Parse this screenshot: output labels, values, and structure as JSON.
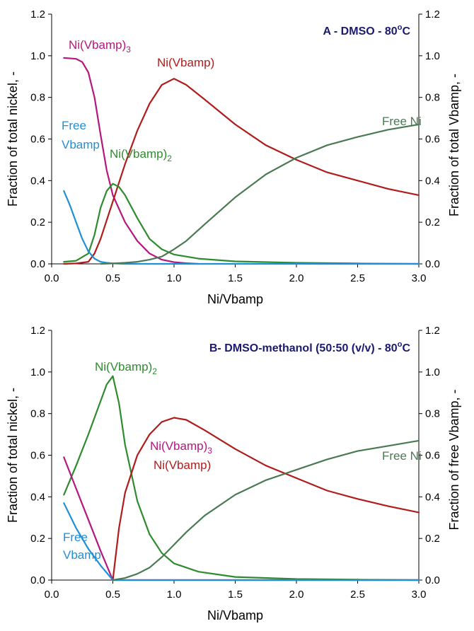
{
  "chart_data": [
    {
      "type": "line",
      "title": "A - DMSO - 80",
      "title_sup": "o",
      "title_unit": "C",
      "xlabel": "Ni/Vbamp",
      "ylabel": "Fraction of total nickel, -",
      "y2label": "Fraction of total Vbamp, -",
      "xlim": [
        0,
        3
      ],
      "ylim": [
        0,
        1.2
      ],
      "xticks": [
        "0.0",
        "0.5",
        "1.0",
        "1.5",
        "2.0",
        "2.5",
        "3.0"
      ],
      "yticks": [
        "0.0",
        "0.2",
        "0.4",
        "0.6",
        "0.8",
        "1.0",
        "1.2"
      ],
      "series": [
        {
          "name": "Ni(Vbamp)3",
          "label_main": "Ni(Vbamp)",
          "label_sub": "3",
          "color": "#b5167f",
          "x": [
            0.1,
            0.2,
            0.25,
            0.3,
            0.35,
            0.4,
            0.45,
            0.5,
            0.6,
            0.7,
            0.8,
            0.9,
            1.0,
            1.1,
            1.2
          ],
          "y": [
            0.99,
            0.985,
            0.97,
            0.92,
            0.8,
            0.62,
            0.45,
            0.33,
            0.2,
            0.11,
            0.05,
            0.02,
            0.008,
            0.003,
            0.0
          ]
        },
        {
          "name": "Ni(Vbamp)",
          "label_main": "Ni(Vbamp)",
          "label_sub": "",
          "color": "#b01c1c",
          "x": [
            0.1,
            0.2,
            0.3,
            0.35,
            0.4,
            0.5,
            0.6,
            0.7,
            0.8,
            0.9,
            1.0,
            1.1,
            1.25,
            1.5,
            1.75,
            2.0,
            2.25,
            2.5,
            2.75,
            3.0
          ],
          "y": [
            0.0,
            0.002,
            0.01,
            0.05,
            0.12,
            0.3,
            0.48,
            0.64,
            0.77,
            0.86,
            0.89,
            0.86,
            0.79,
            0.67,
            0.57,
            0.5,
            0.44,
            0.4,
            0.36,
            0.33
          ]
        },
        {
          "name": "Ni(Vbamp)2",
          "label_main": "Ni(Vbamp)",
          "label_sub": "2",
          "color": "#2e8b2e",
          "x": [
            0.1,
            0.2,
            0.3,
            0.35,
            0.4,
            0.45,
            0.5,
            0.55,
            0.6,
            0.7,
            0.8,
            0.9,
            1.0,
            1.2,
            1.5,
            2.0,
            2.5,
            3.0
          ],
          "y": [
            0.01,
            0.015,
            0.05,
            0.14,
            0.27,
            0.35,
            0.385,
            0.37,
            0.33,
            0.22,
            0.12,
            0.07,
            0.045,
            0.025,
            0.012,
            0.005,
            0.002,
            0.0
          ]
        },
        {
          "name": "Free Vbamp",
          "label_main": "Free",
          "label_line2": "Vbamp",
          "color": "#1f8fd6",
          "x": [
            0.1,
            0.15,
            0.2,
            0.25,
            0.3,
            0.35,
            0.4,
            0.45,
            0.5,
            0.6,
            0.8,
            1.0,
            1.5,
            2.0,
            2.5,
            3.0
          ],
          "y": [
            0.35,
            0.28,
            0.2,
            0.12,
            0.06,
            0.025,
            0.01,
            0.005,
            0.002,
            0.0,
            0.0,
            0.0,
            0.0,
            0.0,
            0.0,
            0.0
          ]
        },
        {
          "name": "Free Ni",
          "label_main": "Free Ni",
          "color": "#4a7a52",
          "x": [
            0.4,
            0.5,
            0.6,
            0.7,
            0.8,
            0.9,
            1.0,
            1.1,
            1.25,
            1.5,
            1.75,
            2.0,
            2.25,
            2.5,
            2.75,
            3.0
          ],
          "y": [
            0.0,
            0.002,
            0.005,
            0.01,
            0.02,
            0.035,
            0.07,
            0.11,
            0.19,
            0.32,
            0.43,
            0.51,
            0.57,
            0.61,
            0.645,
            0.67
          ]
        }
      ]
    },
    {
      "type": "line",
      "title": "B- DMSO-methanol (50:50 (v/v) - 80",
      "title_sup": "o",
      "title_unit": "C",
      "xlabel": "Ni/Vbamp",
      "ylabel": "Fraction of total nickel, -",
      "y2label": "Fraction of free Vbamp, -",
      "xlim": [
        0,
        3
      ],
      "ylim": [
        0,
        1.2
      ],
      "xticks": [
        "0.0",
        "0.5",
        "1.0",
        "1.5",
        "2.0",
        "2.5",
        "3.0"
      ],
      "yticks": [
        "0.0",
        "0.2",
        "0.4",
        "0.6",
        "0.8",
        "1.0",
        "1.2"
      ],
      "series": [
        {
          "name": "Ni(Vbamp)2",
          "label_main": "Ni(Vbamp)",
          "label_sub": "2",
          "color": "#2e8b2e",
          "x": [
            0.1,
            0.2,
            0.3,
            0.4,
            0.45,
            0.5,
            0.55,
            0.6,
            0.7,
            0.8,
            0.9,
            1.0,
            1.2,
            1.5,
            2.0,
            2.5,
            3.0
          ],
          "y": [
            0.41,
            0.55,
            0.7,
            0.86,
            0.94,
            0.98,
            0.85,
            0.65,
            0.38,
            0.22,
            0.13,
            0.08,
            0.04,
            0.015,
            0.005,
            0.002,
            0.0
          ]
        },
        {
          "name": "Ni(Vbamp)3",
          "label_main": "Ni(Vbamp)",
          "label_sub": "3",
          "color": "#b5167f",
          "x": [
            0.1,
            0.2,
            0.3,
            0.4,
            0.5,
            0.6,
            1.0,
            2.0,
            3.0
          ],
          "y": [
            0.59,
            0.44,
            0.29,
            0.14,
            0.0,
            0.0,
            0.0,
            0.0,
            0.0
          ]
        },
        {
          "name": "Ni(Vbamp)",
          "label_main": "Ni(Vbamp)",
          "label_sub": "",
          "color": "#b01c1c",
          "x": [
            0.5,
            0.55,
            0.6,
            0.7,
            0.8,
            0.9,
            1.0,
            1.1,
            1.25,
            1.5,
            1.75,
            2.0,
            2.25,
            2.5,
            2.75,
            3.0
          ],
          "y": [
            0.0,
            0.25,
            0.42,
            0.6,
            0.7,
            0.76,
            0.78,
            0.77,
            0.72,
            0.63,
            0.55,
            0.49,
            0.43,
            0.39,
            0.355,
            0.325
          ]
        },
        {
          "name": "Free Vbamp",
          "label_main": "Free",
          "label_line2": "Vbamp",
          "color": "#1f8fd6",
          "x": [
            0.1,
            0.2,
            0.3,
            0.4,
            0.5,
            0.6,
            1.0,
            1.5,
            2.0,
            2.5,
            3.0
          ],
          "y": [
            0.37,
            0.25,
            0.15,
            0.07,
            0.0,
            0.0,
            0.0,
            0.0,
            0.0,
            0.0,
            0.0
          ]
        },
        {
          "name": "Free Ni",
          "label_main": "Free Ni",
          "color": "#4a7a52",
          "x": [
            0.5,
            0.6,
            0.7,
            0.8,
            0.9,
            1.0,
            1.1,
            1.25,
            1.5,
            1.75,
            2.0,
            2.25,
            2.5,
            2.75,
            3.0
          ],
          "y": [
            0.0,
            0.01,
            0.03,
            0.06,
            0.11,
            0.17,
            0.23,
            0.31,
            0.41,
            0.48,
            0.53,
            0.58,
            0.62,
            0.645,
            0.67
          ]
        }
      ]
    }
  ]
}
